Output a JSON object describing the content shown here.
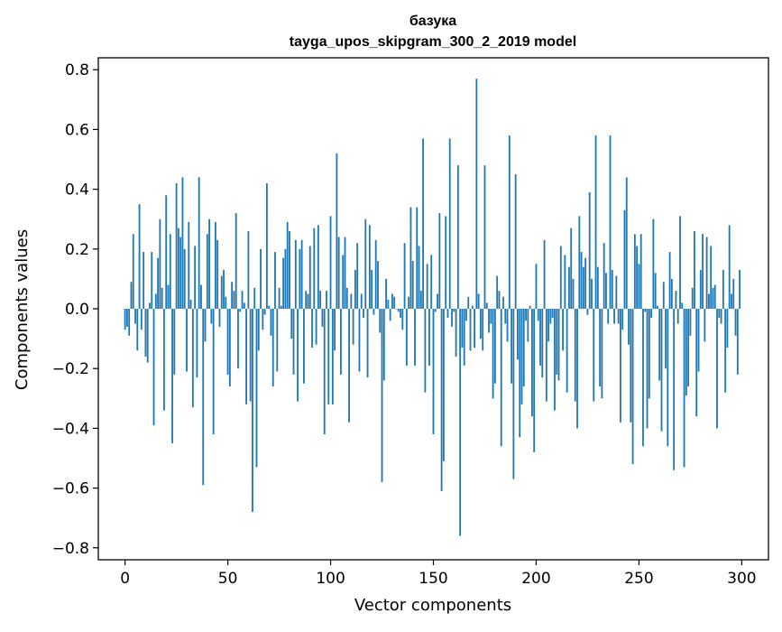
{
  "chart_data": {
    "type": "bar",
    "title": "базука",
    "subtitle": "tayga_upos_skipgram_300_2_2019 model",
    "xlabel": "Vector components",
    "ylabel": "Components values",
    "xlim": [
      -13,
      313
    ],
    "ylim": [
      -0.84,
      0.84
    ],
    "xticks": [
      0,
      50,
      100,
      150,
      200,
      250,
      300
    ],
    "xtick_labels": [
      "0",
      "50",
      "100",
      "150",
      "200",
      "250",
      "300"
    ],
    "yticks": [
      -0.8,
      -0.6,
      -0.4,
      -0.2,
      0.0,
      0.2,
      0.4,
      0.6,
      0.8
    ],
    "ytick_labels": [
      "−0.8",
      "−0.6",
      "−0.4",
      "−0.2",
      "0.0",
      "0.2",
      "0.4",
      "0.6",
      "0.8"
    ],
    "grid": false,
    "bar_color": "#1f77b4",
    "values": [
      -0.07,
      -0.06,
      -0.09,
      0.09,
      0.25,
      -0.05,
      -0.14,
      0.35,
      -0.07,
      0.19,
      -0.16,
      -0.18,
      0.02,
      0.19,
      -0.39,
      0.05,
      0.17,
      0.3,
      0.07,
      -0.34,
      0.38,
      0.08,
      0.25,
      -0.45,
      -0.22,
      0.42,
      0.27,
      0.24,
      0.44,
      0.2,
      -0.21,
      0.29,
      0.03,
      -0.33,
      0.21,
      -0.23,
      0.44,
      0.08,
      -0.59,
      -0.11,
      0.25,
      0.3,
      -0.05,
      -0.42,
      0.29,
      0.23,
      -0.06,
      0.11,
      0.13,
      0.04,
      -0.22,
      -0.26,
      0.09,
      0.06,
      0.32,
      -0.2,
      -0.01,
      0.06,
      0.02,
      -0.32,
      0.26,
      -0.31,
      -0.68,
      0.07,
      -0.53,
      -0.14,
      0.2,
      -0.07,
      -0.02,
      0.42,
      0.01,
      -0.09,
      -0.26,
      0.19,
      -0.21,
      0.07,
      0.01,
      0.17,
      0.2,
      0.29,
      0.26,
      -0.1,
      -0.22,
      0.23,
      -0.31,
      0.2,
      0.23,
      -0.25,
      0.06,
      0.05,
      0.21,
      -0.13,
      0.27,
      -0.12,
      0.28,
      0.06,
      -0.06,
      -0.42,
      0.06,
      -0.32,
      0.31,
      -0.32,
      -0.14,
      0.52,
      0.24,
      -0.22,
      0.18,
      0.24,
      0.07,
      -0.38,
      0.05,
      -0.12,
      0.13,
      0.22,
      -0.21,
      0.05,
      -0.03,
      0.3,
      -0.23,
      0.28,
      0.13,
      -0.02,
      0.23,
      0.16,
      -0.08,
      -0.58,
      -0.24,
      0.1,
      0.03,
      -0.04,
      0.05,
      0.04,
      0.0,
      -0.01,
      -0.03,
      -0.07,
      0.22,
      -0.19,
      0.04,
      0.34,
      0.16,
      -0.19,
      0.34,
      0.21,
      0.06,
      0.57,
      -0.28,
      0.15,
      -0.19,
      0.18,
      -0.42,
      -0.01,
      0.05,
      0.32,
      -0.61,
      -0.51,
      0.31,
      -0.03,
      0.57,
      -0.06,
      -0.01,
      -0.16,
      0.48,
      -0.76,
      -0.13,
      -0.19,
      -0.04,
      0.04,
      -0.14,
      0.01,
      -0.13,
      0.77,
      0.05,
      -0.1,
      -0.14,
      0.48,
      0.02,
      -0.08,
      -0.05,
      -0.3,
      -0.25,
      0.11,
      0.06,
      -0.46,
      0.04,
      -0.05,
      -0.11,
      0.58,
      -0.25,
      -0.57,
      0.45,
      -0.17,
      -0.43,
      -0.32,
      -0.26,
      -0.04,
      -0.11,
      0.01,
      -0.36,
      -0.48,
      0.15,
      -0.04,
      -0.19,
      -0.23,
      0.23,
      -0.31,
      -0.11,
      -0.05,
      -0.03,
      -0.34,
      -0.22,
      -0.24,
      0.21,
      -0.14,
      0.18,
      -0.28,
      0.14,
      0.27,
      0.1,
      -0.31,
      -0.4,
      0.31,
      0.19,
      0.14,
      0.17,
      -0.02,
      0.39,
      0.1,
      -0.31,
      0.58,
      0.14,
      -0.26,
      -0.3,
      0.22,
      0.12,
      -0.05,
      0.58,
      0.13,
      -0.05,
      0.11,
      -0.05,
      -0.38,
      -0.07,
      0.33,
      0.44,
      -0.12,
      -0.38,
      -0.52,
      0.25,
      0.21,
      0.15,
      0.25,
      -0.46,
      -0.01,
      -0.4,
      -0.3,
      -0.03,
      0.3,
      0.12,
      0.01,
      -0.24,
      -0.41,
      0.09,
      -0.2,
      -0.46,
      0.19,
      0.1,
      -0.54,
      0.06,
      -0.05,
      0.31,
      0.02,
      -0.53,
      -0.29,
      -0.26,
      -0.09,
      0.07,
      0.26,
      -0.36,
      -0.21,
      0.13,
      0.25,
      -0.11,
      0.24,
      0.05,
      0.21,
      0.07,
      0.08,
      -0.4,
      -0.03,
      -0.05,
      0.13,
      -0.28,
      -0.13,
      0.28,
      0.05,
      0.1,
      -0.09,
      -0.22,
      0.13
    ]
  }
}
